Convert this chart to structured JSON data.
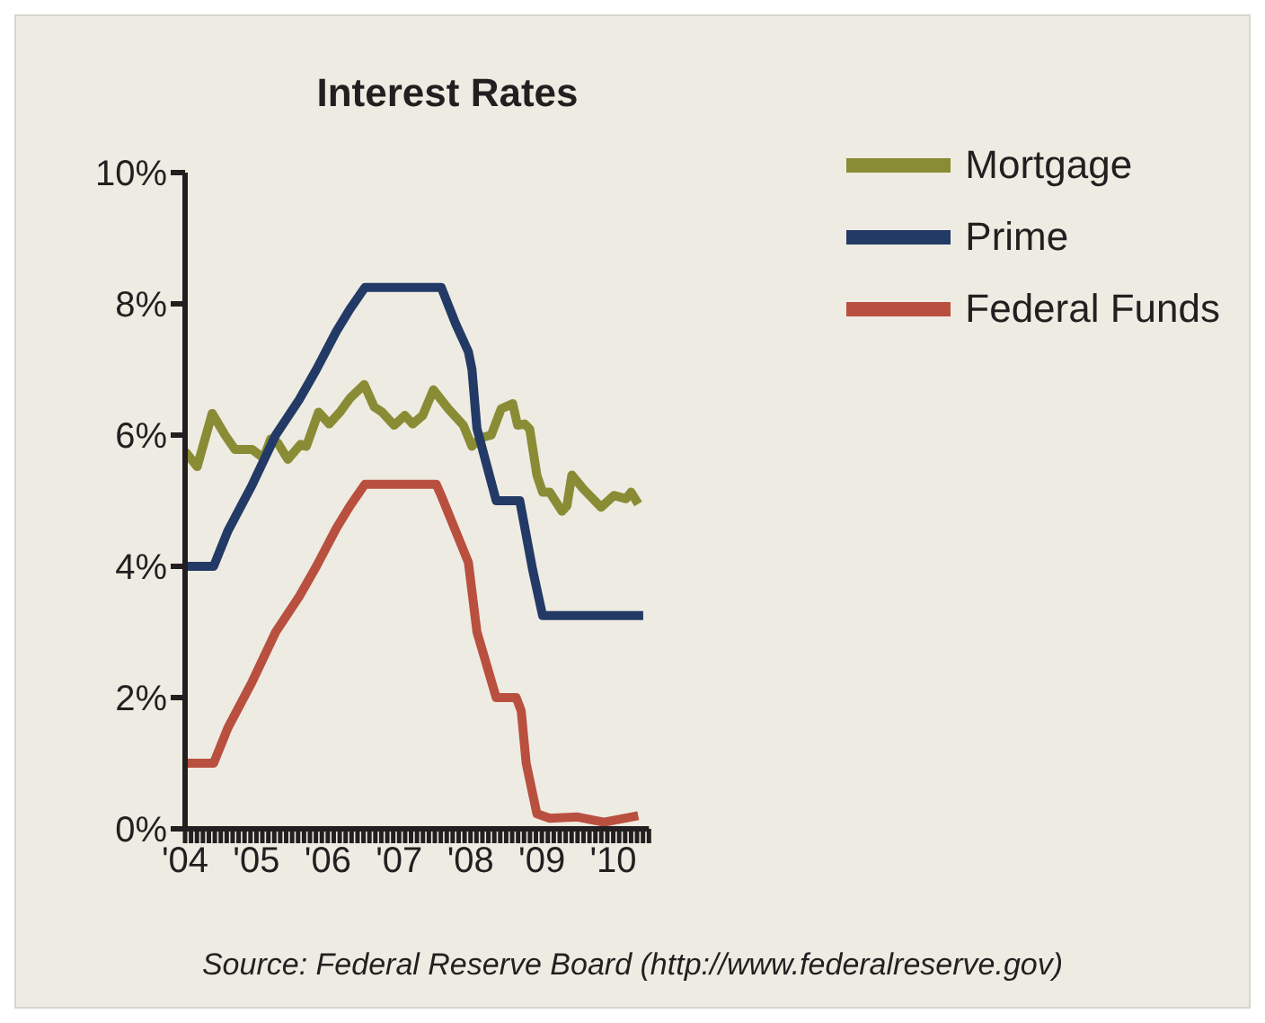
{
  "chart_data": {
    "type": "line",
    "title": "Interest Rates",
    "annotations": [
      "Source: Federal Reserve Board (http://www.federalreserve.gov)"
    ],
    "xlim": [
      2004,
      2010.5
    ],
    "ylim": [
      0,
      10
    ],
    "yticks": [
      {
        "value": 0,
        "label": "0%"
      },
      {
        "value": 2,
        "label": "2%"
      },
      {
        "value": 4,
        "label": "4%"
      },
      {
        "value": 6,
        "label": "6%"
      },
      {
        "value": 8,
        "label": "8%"
      },
      {
        "value": 10,
        "label": "10%"
      }
    ],
    "xticks": [
      {
        "value": 2004,
        "label": "'04"
      },
      {
        "value": 2004.0833,
        "label": null
      },
      {
        "value": 2004.1667,
        "label": null
      },
      {
        "value": 2004.25,
        "label": null
      },
      {
        "value": 2004.3333,
        "label": null
      },
      {
        "value": 2004.4167,
        "label": null
      },
      {
        "value": 2004.5,
        "label": null
      },
      {
        "value": 2004.5833,
        "label": null
      },
      {
        "value": 2004.6667,
        "label": null
      },
      {
        "value": 2004.75,
        "label": null
      },
      {
        "value": 2004.8333,
        "label": null
      },
      {
        "value": 2004.9167,
        "label": null
      },
      {
        "value": 2005,
        "label": "'05"
      },
      {
        "value": 2005.0833,
        "label": null
      },
      {
        "value": 2005.1667,
        "label": null
      },
      {
        "value": 2005.25,
        "label": null
      },
      {
        "value": 2005.3333,
        "label": null
      },
      {
        "value": 2005.4167,
        "label": null
      },
      {
        "value": 2005.5,
        "label": null
      },
      {
        "value": 2005.5833,
        "label": null
      },
      {
        "value": 2005.6667,
        "label": null
      },
      {
        "value": 2005.75,
        "label": null
      },
      {
        "value": 2005.8333,
        "label": null
      },
      {
        "value": 2005.9167,
        "label": null
      },
      {
        "value": 2006,
        "label": "'06"
      },
      {
        "value": 2006.0833,
        "label": null
      },
      {
        "value": 2006.1667,
        "label": null
      },
      {
        "value": 2006.25,
        "label": null
      },
      {
        "value": 2006.3333,
        "label": null
      },
      {
        "value": 2006.4167,
        "label": null
      },
      {
        "value": 2006.5,
        "label": null
      },
      {
        "value": 2006.5833,
        "label": null
      },
      {
        "value": 2006.6667,
        "label": null
      },
      {
        "value": 2006.75,
        "label": null
      },
      {
        "value": 2006.8333,
        "label": null
      },
      {
        "value": 2006.9167,
        "label": null
      },
      {
        "value": 2007,
        "label": "'07"
      },
      {
        "value": 2007.0833,
        "label": null
      },
      {
        "value": 2007.1667,
        "label": null
      },
      {
        "value": 2007.25,
        "label": null
      },
      {
        "value": 2007.3333,
        "label": null
      },
      {
        "value": 2007.4167,
        "label": null
      },
      {
        "value": 2007.5,
        "label": null
      },
      {
        "value": 2007.5833,
        "label": null
      },
      {
        "value": 2007.6667,
        "label": null
      },
      {
        "value": 2007.75,
        "label": null
      },
      {
        "value": 2007.8333,
        "label": null
      },
      {
        "value": 2007.9167,
        "label": null
      },
      {
        "value": 2008,
        "label": "'08"
      },
      {
        "value": 2008.0833,
        "label": null
      },
      {
        "value": 2008.1667,
        "label": null
      },
      {
        "value": 2008.25,
        "label": null
      },
      {
        "value": 2008.3333,
        "label": null
      },
      {
        "value": 2008.4167,
        "label": null
      },
      {
        "value": 2008.5,
        "label": null
      },
      {
        "value": 2008.5833,
        "label": null
      },
      {
        "value": 2008.6667,
        "label": null
      },
      {
        "value": 2008.75,
        "label": null
      },
      {
        "value": 2008.8333,
        "label": null
      },
      {
        "value": 2008.9167,
        "label": null
      },
      {
        "value": 2009,
        "label": "'09"
      },
      {
        "value": 2009.0833,
        "label": null
      },
      {
        "value": 2009.1667,
        "label": null
      },
      {
        "value": 2009.25,
        "label": null
      },
      {
        "value": 2009.3333,
        "label": null
      },
      {
        "value": 2009.4167,
        "label": null
      },
      {
        "value": 2009.5,
        "label": null
      },
      {
        "value": 2009.5833,
        "label": null
      },
      {
        "value": 2009.6667,
        "label": null
      },
      {
        "value": 2009.75,
        "label": null
      },
      {
        "value": 2009.8333,
        "label": null
      },
      {
        "value": 2009.9167,
        "label": null
      },
      {
        "value": 2010,
        "label": "'10"
      },
      {
        "value": 2010.0833,
        "label": null
      },
      {
        "value": 2010.1667,
        "label": null
      },
      {
        "value": 2010.25,
        "label": null
      },
      {
        "value": 2010.3333,
        "label": null
      },
      {
        "value": 2010.4167,
        "label": null
      },
      {
        "value": 2010.5,
        "label": null
      }
    ],
    "grid": false,
    "legend": "top right",
    "marker": "none",
    "line_style": "solid",
    "series": [
      {
        "name": "Mortgage",
        "color": "#8a8c35",
        "x": [
          2004.0,
          2004.17,
          2004.38,
          2004.56,
          2004.7,
          2004.94,
          2005.1,
          2005.2,
          2005.3,
          2005.44,
          2005.62,
          2005.7,
          2005.87,
          2006.02,
          2006.17,
          2006.31,
          2006.51,
          2006.65,
          2006.76,
          2006.93,
          2007.08,
          2007.19,
          2007.33,
          2007.48,
          2007.69,
          2007.9,
          2008.02,
          2008.15,
          2008.29,
          2008.43,
          2008.59,
          2008.66,
          2008.76,
          2008.83,
          2008.93,
          2009.01,
          2009.11,
          2009.28,
          2009.35,
          2009.42,
          2009.58,
          2009.83,
          2010.01,
          2010.18,
          2010.25,
          2010.35
        ],
        "values": [
          5.75,
          5.52,
          6.33,
          6.0,
          5.78,
          5.78,
          5.65,
          5.94,
          5.88,
          5.63,
          5.86,
          5.83,
          6.35,
          6.17,
          6.35,
          6.56,
          6.77,
          6.43,
          6.35,
          6.15,
          6.3,
          6.17,
          6.3,
          6.69,
          6.4,
          6.15,
          5.83,
          5.96,
          6.0,
          6.4,
          6.48,
          6.15,
          6.17,
          6.09,
          5.39,
          5.13,
          5.13,
          4.84,
          4.92,
          5.39,
          5.18,
          4.9,
          5.08,
          5.03,
          5.13,
          4.95
        ]
      },
      {
        "name": "Prime",
        "color": "#233a66",
        "x": [
          2004.0,
          2004.4,
          2004.6,
          2004.94,
          2005.27,
          2005.6,
          2005.84,
          2006.12,
          2006.31,
          2006.52,
          2007.59,
          2007.79,
          2007.97,
          2008.02,
          2008.09,
          2008.36,
          2008.69,
          2008.87,
          2009.01,
          2010.42
        ],
        "values": [
          4.0,
          4.0,
          4.54,
          5.24,
          6.0,
          6.54,
          7.0,
          7.58,
          7.92,
          8.25,
          8.25,
          7.7,
          7.27,
          7.0,
          6.1,
          5.0,
          5.0,
          3.95,
          3.25,
          3.25
        ]
      },
      {
        "name": "Federal Funds",
        "color": "#b9503f",
        "x": [
          2004.0,
          2004.4,
          2004.6,
          2004.94,
          2005.27,
          2005.6,
          2005.84,
          2006.12,
          2006.31,
          2006.52,
          2007.52,
          2007.6,
          2007.97,
          2008.09,
          2008.36,
          2008.64,
          2008.71,
          2008.78,
          2008.93,
          2009.11,
          2009.5,
          2009.87,
          2010.35
        ],
        "values": [
          1.0,
          1.0,
          1.54,
          2.24,
          3.0,
          3.54,
          4.0,
          4.58,
          4.92,
          5.25,
          5.25,
          5.05,
          4.06,
          3.0,
          2.0,
          2.0,
          1.8,
          1.0,
          0.23,
          0.16,
          0.18,
          0.1,
          0.2
        ]
      }
    ]
  }
}
